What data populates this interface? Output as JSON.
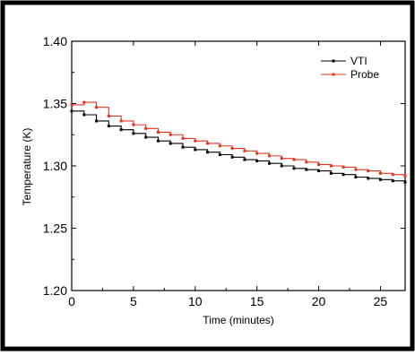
{
  "chart_data": {
    "type": "line",
    "xlabel": "Time (minutes)",
    "ylabel": "Temperature (K)",
    "xlim": [
      0,
      27
    ],
    "ylim": [
      1.2,
      1.4
    ],
    "xticks": [
      0,
      5,
      10,
      15,
      20,
      25
    ],
    "yticks": [
      1.2,
      1.25,
      1.3,
      1.35,
      1.4
    ],
    "xtick_labels": [
      "0",
      "5",
      "10",
      "15",
      "20",
      "25"
    ],
    "ytick_labels": [
      "1.20",
      "1.25",
      "1.30",
      "1.35",
      "1.40"
    ],
    "grid": false,
    "legend_position": "top-right",
    "series": [
      {
        "name": "VTI",
        "color": "#000000",
        "step": true,
        "x": [
          0,
          1,
          2,
          3,
          4,
          5,
          6,
          7,
          8,
          9,
          10,
          11,
          12,
          13,
          14,
          15,
          16,
          17,
          18,
          19,
          20,
          21,
          22,
          23,
          24,
          25,
          26,
          27
        ],
        "values": [
          1.344,
          1.341,
          1.336,
          1.332,
          1.329,
          1.326,
          1.323,
          1.32,
          1.318,
          1.315,
          1.313,
          1.311,
          1.309,
          1.307,
          1.305,
          1.304,
          1.302,
          1.3,
          1.298,
          1.297,
          1.296,
          1.294,
          1.293,
          1.291,
          1.29,
          1.289,
          1.288,
          1.287
        ]
      },
      {
        "name": "Probe",
        "color": "#e8341c",
        "step": true,
        "x": [
          0,
          1,
          2,
          3,
          4,
          5,
          6,
          7,
          8,
          9,
          10,
          11,
          12,
          13,
          14,
          15,
          16,
          17,
          18,
          19,
          20,
          21,
          22,
          23,
          24,
          25,
          26,
          27
        ],
        "values": [
          1.349,
          1.351,
          1.347,
          1.34,
          1.336,
          1.333,
          1.33,
          1.327,
          1.325,
          1.322,
          1.32,
          1.318,
          1.316,
          1.314,
          1.312,
          1.31,
          1.308,
          1.306,
          1.305,
          1.303,
          1.301,
          1.3,
          1.299,
          1.297,
          1.296,
          1.294,
          1.293,
          1.292
        ]
      }
    ]
  }
}
